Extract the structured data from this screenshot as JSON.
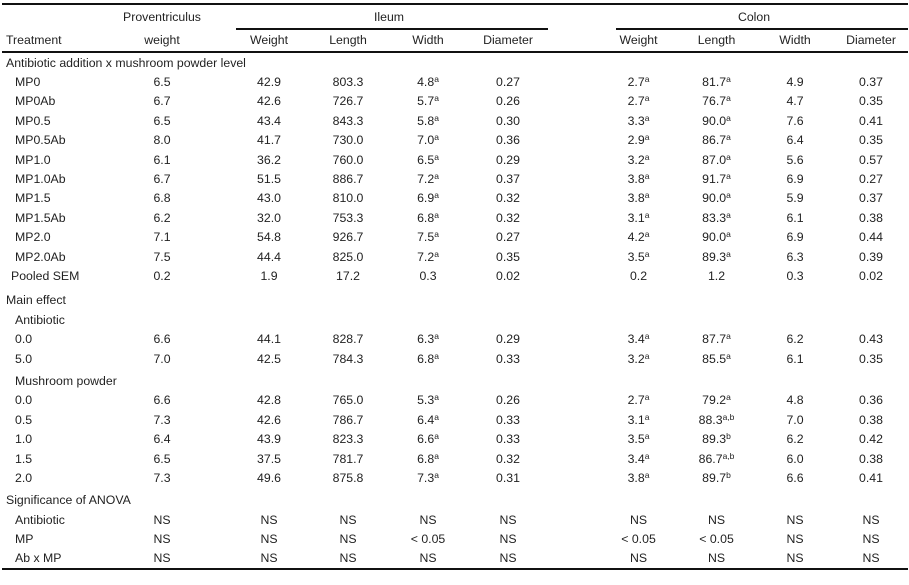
{
  "header": {
    "treatment": "Treatment",
    "proventriculus_top": "Proventriculus",
    "proventriculus_bottom": "weight",
    "ileum": "Ileum",
    "colon": "Colon",
    "ileum_cols": [
      "Weight",
      "Length",
      "Width",
      "Diameter"
    ],
    "colon_cols": [
      "Weight",
      "Length",
      "Width",
      "Diameter"
    ]
  },
  "sections": [
    {
      "type": "sec",
      "label": "Antibiotic addition x mushroom powder level"
    },
    {
      "type": "dat",
      "label": "MP0",
      "values": [
        "6.5",
        "42.9",
        "803.3",
        {
          "v": "4.8",
          "sup": "a"
        },
        "0.27",
        {
          "v": "2.7",
          "sup": "a"
        },
        {
          "v": "81.7",
          "sup": "a"
        },
        "4.9",
        "0.37"
      ]
    },
    {
      "type": "dat",
      "label": "MP0Ab",
      "values": [
        "6.7",
        "42.6",
        "726.7",
        {
          "v": "5.7",
          "sup": "a"
        },
        "0.26",
        {
          "v": "2.7",
          "sup": "a"
        },
        {
          "v": "76.7",
          "sup": "a"
        },
        "4.7",
        "0.35"
      ]
    },
    {
      "type": "dat",
      "label": "MP0.5",
      "values": [
        "6.5",
        "43.4",
        "843.3",
        {
          "v": "5.8",
          "sup": "a"
        },
        "0.30",
        {
          "v": "3.3",
          "sup": "a"
        },
        {
          "v": "90.0",
          "sup": "a"
        },
        "7.6",
        "0.41"
      ]
    },
    {
      "type": "dat",
      "label": "MP0.5Ab",
      "values": [
        "8.0",
        "41.7",
        "730.0",
        {
          "v": "7.0",
          "sup": "a"
        },
        "0.36",
        {
          "v": "2.9",
          "sup": "a"
        },
        {
          "v": "86.7",
          "sup": "a"
        },
        "6.4",
        "0.35"
      ]
    },
    {
      "type": "dat",
      "label": "MP1.0",
      "values": [
        "6.1",
        "36.2",
        "760.0",
        {
          "v": "6.5",
          "sup": "a"
        },
        "0.29",
        {
          "v": "3.2",
          "sup": "a"
        },
        {
          "v": "87.0",
          "sup": "a"
        },
        "5.6",
        "0.57"
      ]
    },
    {
      "type": "dat",
      "label": "MP1.0Ab",
      "values": [
        "6.7",
        "51.5",
        "886.7",
        {
          "v": "7.2",
          "sup": "a"
        },
        "0.37",
        {
          "v": "3.8",
          "sup": "a"
        },
        {
          "v": "91.7",
          "sup": "a"
        },
        "6.9",
        "0.27"
      ]
    },
    {
      "type": "dat",
      "label": "MP1.5",
      "values": [
        "6.8",
        "43.0",
        "810.0",
        {
          "v": "6.9",
          "sup": "a"
        },
        "0.32",
        {
          "v": "3.8",
          "sup": "a"
        },
        {
          "v": "90.0",
          "sup": "a"
        },
        "5.9",
        "0.37"
      ]
    },
    {
      "type": "dat",
      "label": "MP1.5Ab",
      "values": [
        "6.2",
        "32.0",
        "753.3",
        {
          "v": "6.8",
          "sup": "a"
        },
        "0.32",
        {
          "v": "3.1",
          "sup": "a"
        },
        {
          "v": "83.3",
          "sup": "a"
        },
        "6.1",
        "0.38"
      ]
    },
    {
      "type": "dat",
      "label": "MP2.0",
      "values": [
        "7.1",
        "54.8",
        "926.7",
        {
          "v": "7.5",
          "sup": "a"
        },
        "0.27",
        {
          "v": "4.2",
          "sup": "a"
        },
        {
          "v": "90.0",
          "sup": "a"
        },
        "6.9",
        "0.44"
      ]
    },
    {
      "type": "dat",
      "label": "MP2.0Ab",
      "values": [
        "7.5",
        "44.4",
        "825.0",
        {
          "v": "7.2",
          "sup": "a"
        },
        "0.35",
        {
          "v": "3.5",
          "sup": "a"
        },
        {
          "v": "89.3",
          "sup": "a"
        },
        "6.3",
        "0.39"
      ]
    },
    {
      "type": "pool",
      "label": "Pooled SEM",
      "values": [
        "0.2",
        "1.9",
        "17.2",
        "0.3",
        "0.02",
        "0.2",
        "1.2",
        "0.3",
        "0.02"
      ]
    },
    {
      "type": "sec gap",
      "label": "Main effect"
    },
    {
      "type": "sub",
      "label": "Antibiotic"
    },
    {
      "type": "dat",
      "label": "0.0",
      "values": [
        "6.6",
        "44.1",
        "828.7",
        {
          "v": "6.3",
          "sup": "a"
        },
        "0.29",
        {
          "v": "3.4",
          "sup": "a"
        },
        {
          "v": "87.7",
          "sup": "a"
        },
        "6.2",
        "0.43"
      ]
    },
    {
      "type": "dat",
      "label": "5.0",
      "values": [
        "7.0",
        "42.5",
        "784.3",
        {
          "v": "6.8",
          "sup": "a"
        },
        "0.33",
        {
          "v": "3.2",
          "sup": "a"
        },
        {
          "v": "85.5",
          "sup": "a"
        },
        "6.1",
        "0.35"
      ]
    },
    {
      "type": "sub gap2",
      "label": "Mushroom powder"
    },
    {
      "type": "dat",
      "label": "0.0",
      "values": [
        "6.6",
        "42.8",
        "765.0",
        {
          "v": "5.3",
          "sup": "a"
        },
        "0.26",
        {
          "v": "2.7",
          "sup": "a"
        },
        {
          "v": "79.2",
          "sup": "a"
        },
        "4.8",
        "0.36"
      ]
    },
    {
      "type": "dat",
      "label": "0.5",
      "values": [
        "7.3",
        "42.6",
        "786.7",
        {
          "v": "6.4",
          "sup": "a"
        },
        "0.33",
        {
          "v": "3.1",
          "sup": "a"
        },
        {
          "v": "88.3",
          "sup": "a,b"
        },
        "7.0",
        "0.38"
      ]
    },
    {
      "type": "dat",
      "label": "1.0",
      "values": [
        "6.4",
        "43.9",
        "823.3",
        {
          "v": "6.6",
          "sup": "a"
        },
        "0.33",
        {
          "v": "3.5",
          "sup": "a"
        },
        {
          "v": "89.3",
          "sup": "b"
        },
        "6.2",
        "0.42"
      ]
    },
    {
      "type": "dat",
      "label": "1.5",
      "values": [
        "6.5",
        "37.5",
        "781.7",
        {
          "v": "6.8",
          "sup": "a"
        },
        "0.32",
        {
          "v": "3.4",
          "sup": "a"
        },
        {
          "v": "86.7",
          "sup": "a,b"
        },
        "6.0",
        "0.38"
      ]
    },
    {
      "type": "dat",
      "label": "2.0",
      "values": [
        "7.3",
        "49.6",
        "875.8",
        {
          "v": "7.3",
          "sup": "a"
        },
        "0.31",
        {
          "v": "3.8",
          "sup": "a"
        },
        {
          "v": "89.7",
          "sup": "b"
        },
        "6.6",
        "0.41"
      ]
    },
    {
      "type": "sec gap2",
      "label": "Significance of ANOVA"
    },
    {
      "type": "dat",
      "label": "Antibiotic",
      "values": [
        "NS",
        "NS",
        "NS",
        "NS",
        "NS",
        "NS",
        "NS",
        "NS",
        "NS"
      ]
    },
    {
      "type": "dat",
      "label": "MP",
      "values": [
        "NS",
        "NS",
        "NS",
        "< 0.05",
        "NS",
        "< 0.05",
        "< 0.05",
        "NS",
        "NS"
      ]
    },
    {
      "type": "dat",
      "label": "Ab x MP",
      "values": [
        "NS",
        "NS",
        "NS",
        "NS",
        "NS",
        "NS",
        "NS",
        "NS",
        "NS"
      ]
    }
  ]
}
